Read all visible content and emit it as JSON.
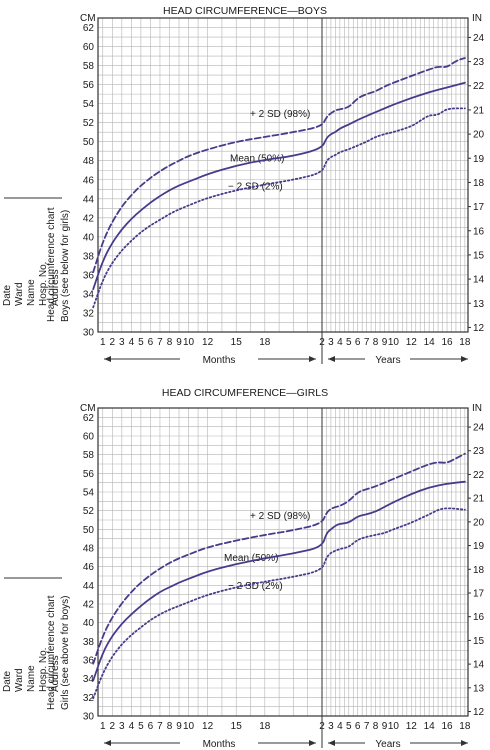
{
  "side_panel": {
    "fields": [
      "Date",
      "Ward",
      "Name",
      "Hosp. No.",
      "Address"
    ]
  },
  "chart_data": [
    {
      "type": "line",
      "title": "HEAD CIRCUMFERENCE—BOYS",
      "y_unit_left": "CM",
      "y_unit_right": "IN",
      "ylim_cm": [
        30,
        63
      ],
      "y_ticks_cm": [
        30,
        32,
        34,
        36,
        38,
        40,
        42,
        44,
        46,
        48,
        50,
        52,
        54,
        56,
        58,
        60,
        62
      ],
      "y_ticks_in": [
        12,
        13,
        14,
        15,
        16,
        17,
        18,
        19,
        20,
        21,
        22,
        23,
        24
      ],
      "month_ticks": [
        "1",
        "2",
        "3",
        "4",
        "5",
        "6",
        "7",
        "8",
        "9",
        "10",
        "12",
        "15",
        "18"
      ],
      "year_ticks": [
        "2",
        "3",
        "4",
        "5",
        "6",
        "7",
        "8",
        "9",
        "10",
        "12",
        "14",
        "16",
        "18"
      ],
      "xlabel_months": "Months",
      "xlabel_years": "Years",
      "side_label_1": "Head circumference chart",
      "side_label_2": "Boys (see below for girls)",
      "grid": true,
      "series": [
        {
          "name": "+ 2 SD (98%)",
          "style": "dashed",
          "points": [
            [
              "m",
              0,
              36.3
            ],
            [
              "m",
              1,
              39.5
            ],
            [
              "m",
              2,
              41.6
            ],
            [
              "m",
              3,
              43.2
            ],
            [
              "m",
              4,
              44.4
            ],
            [
              "m",
              5,
              45.4
            ],
            [
              "m",
              6,
              46.2
            ],
            [
              "m",
              7,
              46.9
            ],
            [
              "m",
              8,
              47.5
            ],
            [
              "m",
              9,
              48.0
            ],
            [
              "m",
              10,
              48.5
            ],
            [
              "m",
              12,
              49.2
            ],
            [
              "m",
              15,
              50.0
            ],
            [
              "m",
              18,
              50.5
            ],
            [
              "m",
              21,
              51.0
            ],
            [
              "y",
              2,
              51.6
            ],
            [
              "y",
              2.5,
              52.6
            ],
            [
              "y",
              3,
              53.0
            ],
            [
              "y",
              3.5,
              53.3
            ],
            [
              "y",
              4,
              53.4
            ],
            [
              "y",
              5,
              53.6
            ],
            [
              "y",
              6,
              54.6
            ],
            [
              "y",
              7,
              55.0
            ],
            [
              "y",
              8,
              55.3
            ],
            [
              "y",
              9,
              55.8
            ],
            [
              "y",
              10,
              56.2
            ],
            [
              "y",
              12,
              56.9
            ],
            [
              "y",
              14,
              57.6
            ],
            [
              "y",
              15,
              57.9
            ],
            [
              "y",
              16,
              57.8
            ],
            [
              "y",
              17,
              58.5
            ],
            [
              "y",
              18,
              58.8
            ]
          ]
        },
        {
          "name": "Mean (50%)",
          "style": "solid",
          "points": [
            [
              "m",
              0,
              34.5
            ],
            [
              "m",
              1,
              37.5
            ],
            [
              "m",
              2,
              39.4
            ],
            [
              "m",
              3,
              40.8
            ],
            [
              "m",
              4,
              41.9
            ],
            [
              "m",
              5,
              42.8
            ],
            [
              "m",
              6,
              43.6
            ],
            [
              "m",
              7,
              44.3
            ],
            [
              "m",
              8,
              44.9
            ],
            [
              "m",
              9,
              45.4
            ],
            [
              "m",
              10,
              45.8
            ],
            [
              "m",
              12,
              46.6
            ],
            [
              "m",
              15,
              47.5
            ],
            [
              "m",
              18,
              48.1
            ],
            [
              "m",
              21,
              48.5
            ],
            [
              "y",
              2,
              49.3
            ],
            [
              "y",
              2.5,
              50.4
            ],
            [
              "y",
              3,
              50.8
            ],
            [
              "y",
              3.5,
              51.0
            ],
            [
              "y",
              4,
              51.4
            ],
            [
              "y",
              5,
              51.8
            ],
            [
              "y",
              6,
              52.3
            ],
            [
              "y",
              7,
              52.7
            ],
            [
              "y",
              8,
              53.1
            ],
            [
              "y",
              9,
              53.5
            ],
            [
              "y",
              10,
              53.9
            ],
            [
              "y",
              12,
              54.6
            ],
            [
              "y",
              14,
              55.2
            ],
            [
              "y",
              16,
              55.7
            ],
            [
              "y",
              18,
              56.2
            ]
          ]
        },
        {
          "name": "− 2 SD (2%)",
          "style": "dotted",
          "points": [
            [
              "m",
              0,
              32.6
            ],
            [
              "m",
              1,
              35.5
            ],
            [
              "m",
              2,
              37.3
            ],
            [
              "m",
              3,
              38.6
            ],
            [
              "m",
              4,
              39.6
            ],
            [
              "m",
              5,
              40.5
            ],
            [
              "m",
              6,
              41.2
            ],
            [
              "m",
              7,
              41.8
            ],
            [
              "m",
              8,
              42.4
            ],
            [
              "m",
              9,
              42.9
            ],
            [
              "m",
              10,
              43.3
            ],
            [
              "m",
              12,
              44.1
            ],
            [
              "m",
              15,
              44.9
            ],
            [
              "m",
              18,
              45.5
            ],
            [
              "m",
              21,
              46.0
            ],
            [
              "y",
              2,
              46.7
            ],
            [
              "y",
              2.5,
              48.0
            ],
            [
              "y",
              3,
              48.4
            ],
            [
              "y",
              3.5,
              48.6
            ],
            [
              "y",
              4,
              48.9
            ],
            [
              "y",
              5,
              49.2
            ],
            [
              "y",
              6,
              49.6
            ],
            [
              "y",
              7,
              50.0
            ],
            [
              "y",
              8,
              50.5
            ],
            [
              "y",
              9,
              50.8
            ],
            [
              "y",
              10,
              51.0
            ],
            [
              "y",
              12,
              51.6
            ],
            [
              "y",
              13,
              52.2
            ],
            [
              "y",
              14,
              52.8
            ],
            [
              "y",
              15,
              52.8
            ],
            [
              "y",
              16,
              53.5
            ],
            [
              "y",
              18,
              53.5
            ]
          ]
        }
      ],
      "labels": {
        "plus2sd": "+ 2 SD (98%)",
        "mean": "Mean (50%)",
        "minus2sd": "− 2 SD (2%)"
      }
    },
    {
      "type": "line",
      "title": "HEAD CIRCUMFERENCE—GIRLS",
      "y_unit_left": "CM",
      "y_unit_right": "IN",
      "ylim_cm": [
        30,
        63
      ],
      "y_ticks_cm": [
        30,
        32,
        34,
        36,
        38,
        40,
        42,
        44,
        46,
        48,
        50,
        52,
        54,
        56,
        58,
        60,
        62
      ],
      "y_ticks_in": [
        12,
        13,
        14,
        15,
        16,
        17,
        18,
        19,
        20,
        21,
        22,
        23,
        24
      ],
      "month_ticks": [
        "1",
        "2",
        "3",
        "4",
        "5",
        "6",
        "7",
        "8",
        "9",
        "10",
        "12",
        "15",
        "18"
      ],
      "year_ticks": [
        "2",
        "3",
        "4",
        "5",
        "6",
        "7",
        "8",
        "9",
        "10",
        "12",
        "14",
        "16",
        "18"
      ],
      "xlabel_months": "Months",
      "xlabel_years": "Years",
      "side_label_1": "Head circumference chart",
      "side_label_2": "Girls (see above for boys)",
      "grid": true,
      "series": [
        {
          "name": "+ 2 SD (98%)",
          "style": "dashed",
          "points": [
            [
              "m",
              0,
              35.6
            ],
            [
              "m",
              1,
              38.6
            ],
            [
              "m",
              2,
              40.6
            ],
            [
              "m",
              3,
              42.1
            ],
            [
              "m",
              4,
              43.3
            ],
            [
              "m",
              5,
              44.3
            ],
            [
              "m",
              6,
              45.1
            ],
            [
              "m",
              7,
              45.8
            ],
            [
              "m",
              8,
              46.4
            ],
            [
              "m",
              9,
              46.9
            ],
            [
              "m",
              10,
              47.3
            ],
            [
              "m",
              12,
              48.1
            ],
            [
              "m",
              15,
              48.8
            ],
            [
              "m",
              18,
              49.4
            ],
            [
              "m",
              21,
              49.9
            ],
            [
              "y",
              2,
              50.6
            ],
            [
              "y",
              2.5,
              51.8
            ],
            [
              "y",
              3,
              52.2
            ],
            [
              "y",
              3.5,
              52.4
            ],
            [
              "y",
              4,
              52.5
            ],
            [
              "y",
              5,
              53.0
            ],
            [
              "y",
              6,
              54.0
            ],
            [
              "y",
              7,
              54.3
            ],
            [
              "y",
              8,
              54.6
            ],
            [
              "y",
              9,
              55.0
            ],
            [
              "y",
              10,
              55.4
            ],
            [
              "y",
              12,
              56.2
            ],
            [
              "y",
              14,
              57.0
            ],
            [
              "y",
              15,
              57.2
            ],
            [
              "y",
              16,
              57.1
            ],
            [
              "y",
              17,
              57.6
            ],
            [
              "y",
              18,
              58.1
            ]
          ]
        },
        {
          "name": "Mean (50%)",
          "style": "solid",
          "points": [
            [
              "m",
              0,
              33.8
            ],
            [
              "m",
              1,
              36.8
            ],
            [
              "m",
              2,
              38.6
            ],
            [
              "m",
              3,
              39.9
            ],
            [
              "m",
              4,
              40.9
            ],
            [
              "m",
              5,
              41.8
            ],
            [
              "m",
              6,
              42.6
            ],
            [
              "m",
              7,
              43.3
            ],
            [
              "m",
              8,
              43.8
            ],
            [
              "m",
              9,
              44.3
            ],
            [
              "m",
              10,
              44.7
            ],
            [
              "m",
              12,
              45.5
            ],
            [
              "m",
              15,
              46.3
            ],
            [
              "m",
              18,
              46.9
            ],
            [
              "m",
              21,
              47.4
            ],
            [
              "y",
              2,
              48.1
            ],
            [
              "y",
              2.5,
              49.6
            ],
            [
              "y",
              3,
              50.0
            ],
            [
              "y",
              3.5,
              50.4
            ],
            [
              "y",
              4,
              50.6
            ],
            [
              "y",
              5,
              50.7
            ],
            [
              "y",
              6,
              51.4
            ],
            [
              "y",
              7,
              51.6
            ],
            [
              "y",
              8,
              51.9
            ],
            [
              "y",
              9,
              52.4
            ],
            [
              "y",
              10,
              52.9
            ],
            [
              "y",
              12,
              53.8
            ],
            [
              "y",
              14,
              54.5
            ],
            [
              "y",
              16,
              54.9
            ],
            [
              "y",
              18,
              55.1
            ]
          ]
        },
        {
          "name": "− 2 SD (2%)",
          "style": "dotted",
          "points": [
            [
              "m",
              0,
              31.9
            ],
            [
              "m",
              1,
              34.6
            ],
            [
              "m",
              2,
              36.4
            ],
            [
              "m",
              3,
              37.7
            ],
            [
              "m",
              4,
              38.7
            ],
            [
              "m",
              5,
              39.5
            ],
            [
              "m",
              6,
              40.3
            ],
            [
              "m",
              7,
              40.9
            ],
            [
              "m",
              8,
              41.4
            ],
            [
              "m",
              9,
              41.8
            ],
            [
              "m",
              10,
              42.2
            ],
            [
              "m",
              12,
              43.0
            ],
            [
              "m",
              15,
              43.8
            ],
            [
              "m",
              18,
              44.4
            ],
            [
              "m",
              21,
              44.9
            ],
            [
              "y",
              2,
              45.6
            ],
            [
              "y",
              2.5,
              47.0
            ],
            [
              "y",
              3,
              47.5
            ],
            [
              "y",
              3.5,
              47.7
            ],
            [
              "y",
              4,
              47.9
            ],
            [
              "y",
              5,
              48.1
            ],
            [
              "y",
              6,
              48.9
            ],
            [
              "y",
              7,
              49.2
            ],
            [
              "y",
              8,
              49.4
            ],
            [
              "y",
              9,
              49.6
            ],
            [
              "y",
              10,
              50.0
            ],
            [
              "y",
              12,
              50.7
            ],
            [
              "y",
              14,
              51.6
            ],
            [
              "y",
              15,
              52.1
            ],
            [
              "y",
              16,
              52.3
            ],
            [
              "y",
              18,
              52.1
            ]
          ]
        }
      ],
      "labels": {
        "plus2sd": "+ 2 SD (98%)",
        "mean": "Mean (50%)",
        "minus2sd": "− 2 SD (2%)"
      }
    }
  ],
  "colors": {
    "curve": "#4b3a8c",
    "grid": "#b3b3b3",
    "axis": "#333333"
  }
}
